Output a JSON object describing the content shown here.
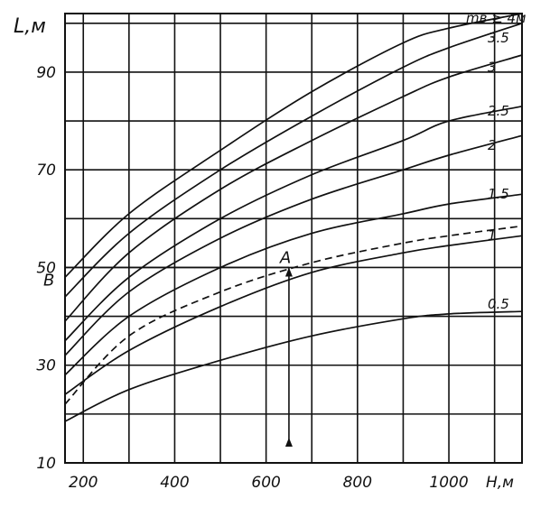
{
  "chart_data": {
    "type": "line",
    "xlabel": "H,м",
    "ylabel": "L,м",
    "xlim": [
      160,
      1160
    ],
    "ylim": [
      10,
      102
    ],
    "x_ticks": [
      200,
      400,
      600,
      800,
      1000
    ],
    "y_ticks": [
      10,
      30,
      50,
      70,
      90
    ],
    "grid": true,
    "series": [
      {
        "label": "0.5",
        "dashed": false,
        "x": [
          160,
          300,
          500,
          700,
          900,
          1000,
          1160
        ],
        "y": [
          18.5,
          25,
          31,
          36,
          39.5,
          40.5,
          41
        ]
      },
      {
        "label": "1",
        "dashed": false,
        "x": [
          160,
          300,
          500,
          700,
          900,
          1000,
          1160
        ],
        "y": [
          24,
          33,
          42,
          49,
          53,
          54.5,
          56.5
        ]
      },
      {
        "label": "",
        "dashed": true,
        "x": [
          160,
          300,
          500,
          700,
          900,
          1000,
          1160
        ],
        "y": [
          22,
          36,
          45,
          51,
          55,
          56.5,
          58.5
        ]
      },
      {
        "label": "1.5",
        "dashed": false,
        "x": [
          160,
          300,
          500,
          700,
          900,
          1000,
          1160
        ],
        "y": [
          28,
          40,
          50,
          57,
          61,
          63,
          65
        ]
      },
      {
        "label": "2",
        "dashed": false,
        "x": [
          160,
          300,
          500,
          700,
          900,
          1000,
          1160
        ],
        "y": [
          32,
          45,
          56,
          64,
          70,
          73,
          77
        ]
      },
      {
        "label": "2.5",
        "dashed": false,
        "x": [
          160,
          300,
          500,
          700,
          900,
          1000,
          1160
        ],
        "y": [
          35,
          48,
          60,
          69,
          76,
          80,
          83
        ]
      },
      {
        "label": "3",
        "dashed": false,
        "x": [
          160,
          300,
          500,
          700,
          900,
          1000,
          1160
        ],
        "y": [
          39,
          53,
          66,
          76,
          85,
          89,
          93.5
        ]
      },
      {
        "label": "3.5",
        "dashed": false,
        "x": [
          160,
          300,
          500,
          700,
          900,
          1000,
          1160
        ],
        "y": [
          44,
          57,
          70,
          81,
          91,
          95,
          100
        ]
      },
      {
        "label": "mв ≥ 4м",
        "dashed": false,
        "x": [
          160,
          300,
          500,
          700,
          900,
          1000,
          1160
        ],
        "y": [
          48,
          61,
          74,
          86,
          96,
          99,
          102
        ]
      }
    ],
    "annotations": [
      {
        "text": "A",
        "x": 650,
        "y": 50
      },
      {
        "text": "B",
        "x": 160,
        "y": 50
      }
    ]
  }
}
